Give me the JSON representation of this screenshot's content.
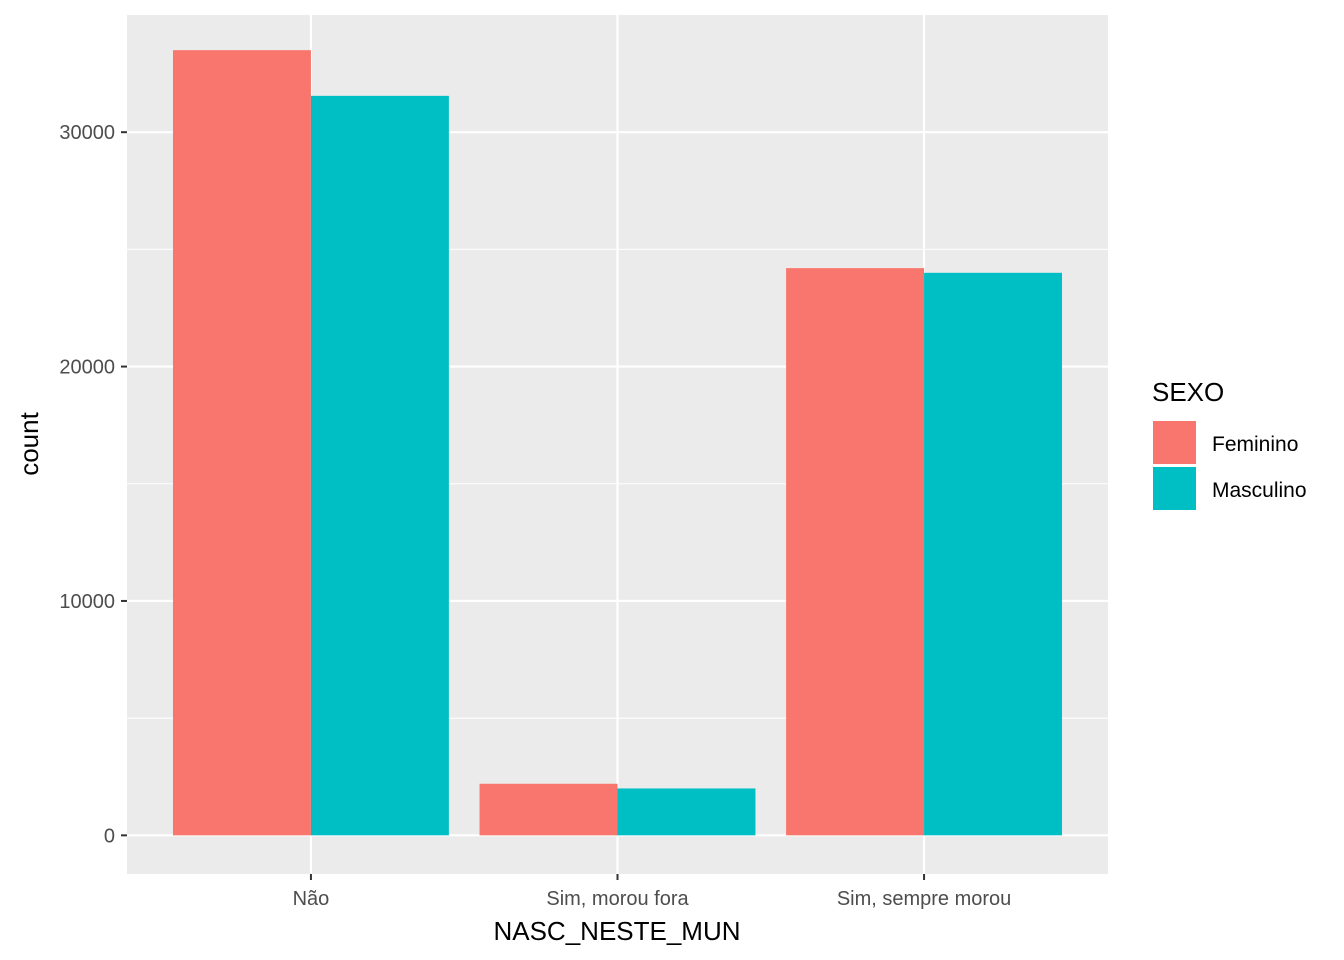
{
  "chart_data": {
    "type": "bar",
    "xlabel": "NASC_NESTE_MUN",
    "ylabel": "count",
    "categories": [
      "Não",
      "Sim, morou fora",
      "Sim, sempre morou"
    ],
    "series": [
      {
        "name": "Feminino",
        "color": "#F8766D",
        "values": [
          33500,
          2200,
          24200
        ]
      },
      {
        "name": "Masculino",
        "color": "#00BFC4",
        "values": [
          31550,
          2000,
          24000
        ]
      }
    ],
    "ylim": [
      -1650,
      35000
    ],
    "yticks": [
      0,
      10000,
      20000,
      30000
    ],
    "ytick_labels": [
      "0",
      "10000",
      "20000",
      "30000"
    ],
    "grid": true,
    "panel_background": "#EBEBEB",
    "legend": {
      "title": "SEXO",
      "position": "right"
    }
  }
}
